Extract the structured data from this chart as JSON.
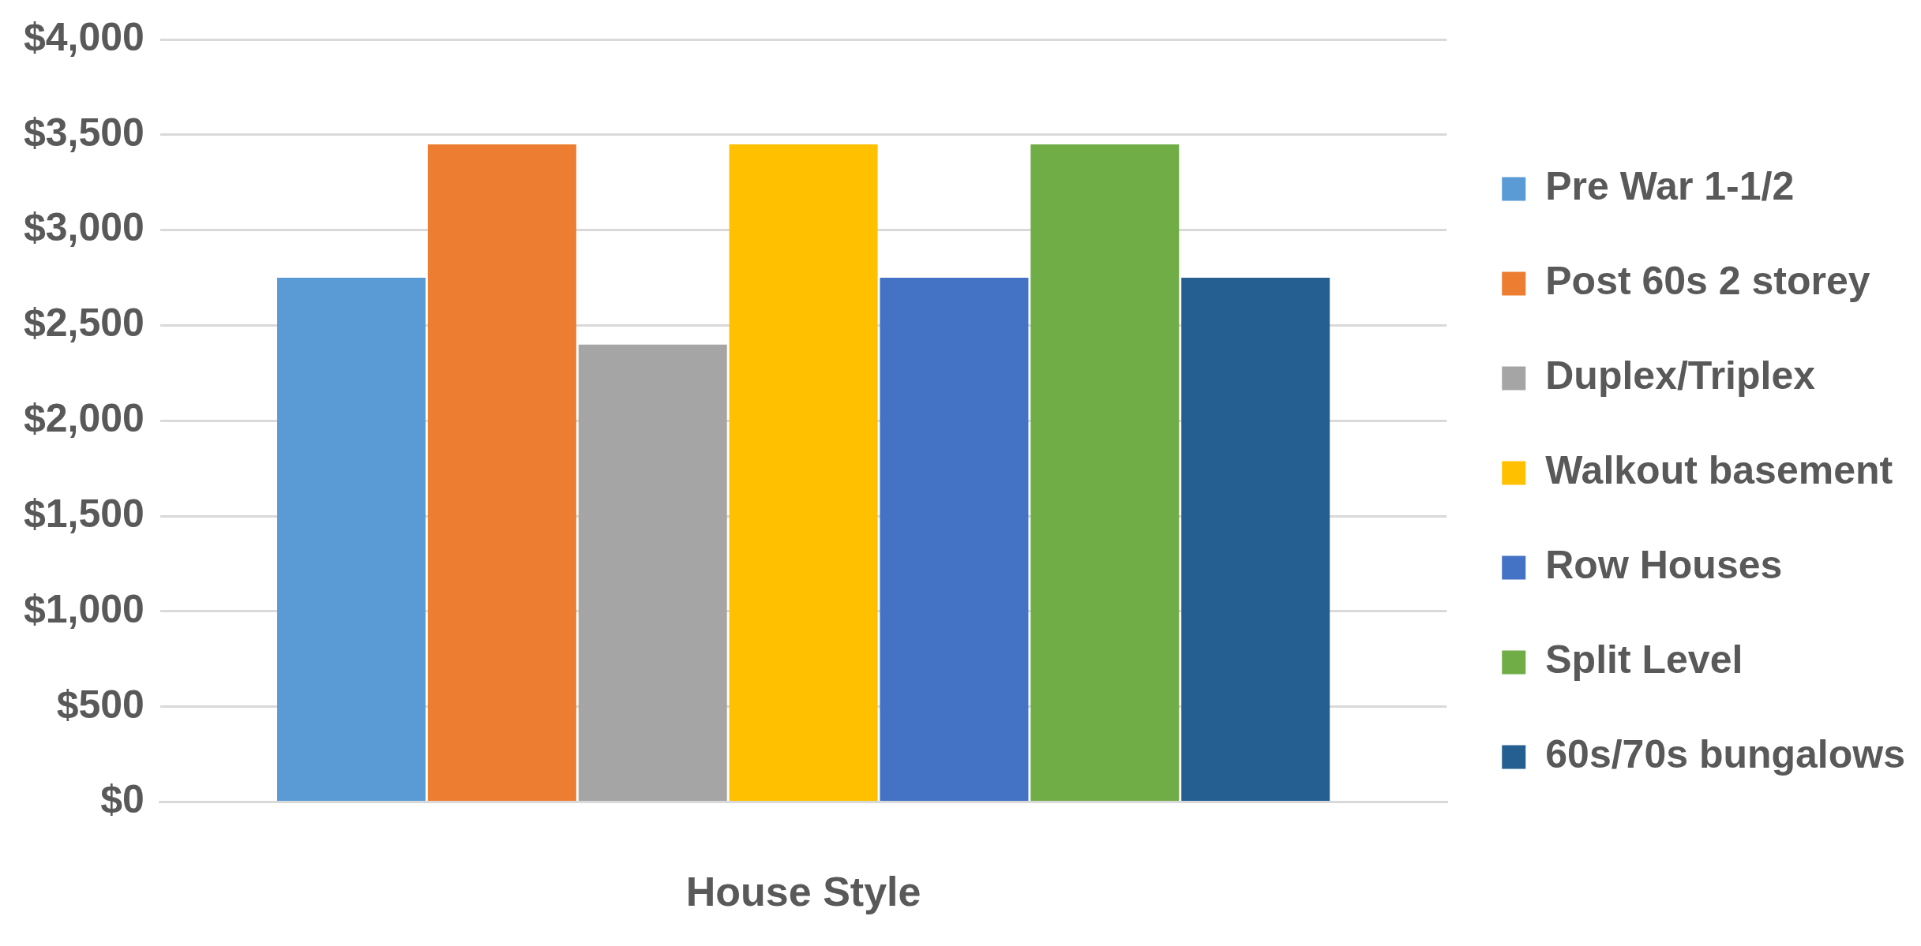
{
  "chart_data": {
    "type": "bar",
    "xlabel": "House Style",
    "categories": [
      null
    ],
    "series": [
      {
        "name": "Pre War 1-1/2",
        "color": "#5b9bd5",
        "values": [
          2750
        ]
      },
      {
        "name": "Post 60s 2 storey",
        "color": "#ed7d31",
        "values": [
          3450
        ]
      },
      {
        "name": "Duplex/Triplex",
        "color": "#a5a5a5",
        "values": [
          2400
        ]
      },
      {
        "name": "Walkout basement",
        "color": "#ffc000",
        "values": [
          3450
        ]
      },
      {
        "name": "Row Houses",
        "color": "#4472c4",
        "values": [
          2750
        ]
      },
      {
        "name": "Split Level",
        "color": "#70ad47",
        "values": [
          3450
        ]
      },
      {
        "name": "60s/70s bungalows",
        "color": "#255e91",
        "values": [
          2750
        ]
      }
    ],
    "ylim": [
      0,
      4000
    ],
    "yticks": [
      {
        "value": 0,
        "label": "$0"
      },
      {
        "value": 500,
        "label": "$500"
      },
      {
        "value": 1000,
        "label": "$1,000"
      },
      {
        "value": 1500,
        "label": "$1,500"
      },
      {
        "value": 2000,
        "label": "$2,000"
      },
      {
        "value": 2500,
        "label": "$2,500"
      },
      {
        "value": 3000,
        "label": "$3,000"
      },
      {
        "value": 3500,
        "label": "$3,500"
      },
      {
        "value": 4000,
        "label": "$4,000"
      }
    ],
    "grid": "y",
    "legend": "right"
  }
}
